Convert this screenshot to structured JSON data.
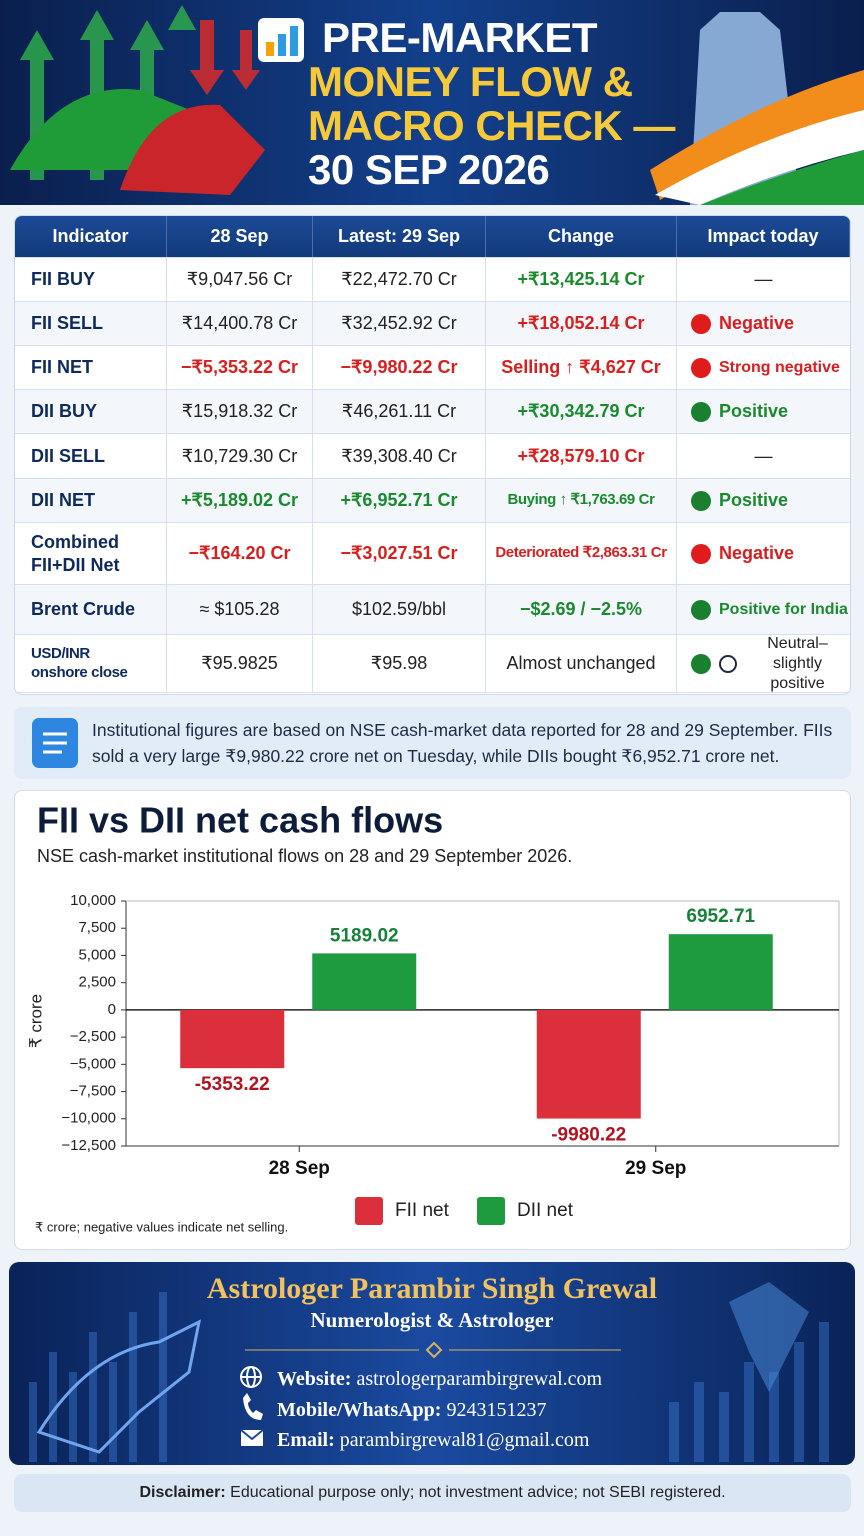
{
  "header": {
    "title_lines": [
      "PRE-MARKET",
      "MONEY FLOW &",
      "MACRO CHECK —",
      "30 SEP 2026"
    ]
  },
  "table": {
    "headers": [
      "Indicator",
      "28 Sep",
      "Latest: 29 Sep",
      "Change",
      "Impact today"
    ],
    "rows": [
      {
        "cells": [
          "FII BUY",
          "₹9,047.56 Cr",
          "₹22,472.70 Cr",
          "+₹13,425.14 Cr"
        ],
        "tones": [
          "dark",
          "plain",
          "plain",
          "green"
        ],
        "impact": {
          "text": "—",
          "dots": []
        }
      },
      {
        "cells": [
          "FII SELL",
          "₹14,400.78 Cr",
          "₹32,452.92 Cr",
          "+₹18,052.14 Cr"
        ],
        "tones": [
          "dark",
          "plain",
          "plain",
          "red"
        ],
        "impact": {
          "text": "Negative",
          "dots": [
            "#e01b1b"
          ],
          "tone": "red"
        }
      },
      {
        "cells": [
          "FII NET",
          "−₹5,353.22 Cr",
          "−₹9,980.22 Cr",
          "Selling ↑ ₹4,627 Cr"
        ],
        "tones": [
          "dark",
          "red",
          "red",
          "red"
        ],
        "impact": {
          "text": "Strong negative",
          "dots": [
            "#e01b1b"
          ],
          "tone": "red"
        }
      },
      {
        "cells": [
          "DII BUY",
          "₹15,918.32 Cr",
          "₹46,261.11 Cr",
          "+₹30,342.79 Cr"
        ],
        "tones": [
          "dark",
          "plain",
          "plain",
          "green"
        ],
        "impact": {
          "text": "Positive",
          "dots": [
            "#1a7f2e"
          ],
          "tone": "green"
        }
      },
      {
        "cells": [
          "DII SELL",
          "₹10,729.30 Cr",
          "₹39,308.40 Cr",
          "+₹28,579.10 Cr"
        ],
        "tones": [
          "dark",
          "plain",
          "plain",
          "red"
        ],
        "impact": {
          "text": "—",
          "dots": []
        }
      },
      {
        "cells": [
          "DII NET",
          "+₹5,189.02 Cr",
          "+₹6,952.71 Cr",
          "Buying ↑ ₹1,763.69 Cr"
        ],
        "tones": [
          "dark",
          "green",
          "green",
          "green"
        ],
        "impact": {
          "text": "Positive",
          "dots": [
            "#1a7f2e"
          ],
          "tone": "green"
        }
      },
      {
        "cells": [
          "Combined\nFII+DII Net",
          "−₹164.20 Cr",
          "−₹3,027.51 Cr",
          "Deteriorated ₹2,863.31 Cr"
        ],
        "tones": [
          "dark",
          "red",
          "red",
          "red"
        ],
        "impact": {
          "text": "Negative",
          "dots": [
            "#e01b1b"
          ],
          "tone": "red"
        }
      },
      {
        "cells": [
          "Brent Crude",
          "≈ $105.28",
          "$102.59/bbl",
          "−$2.69 / −2.5%"
        ],
        "tones": [
          "dark",
          "plain",
          "plain",
          "green"
        ],
        "impact": {
          "text": "Positive for India",
          "dots": [
            "#1a7f2e"
          ],
          "tone": "green"
        }
      },
      {
        "cells": [
          "USD/INR\nonshore close",
          "₹95.9825",
          "₹95.98",
          "Almost unchanged"
        ],
        "tones": [
          "dark",
          "plain",
          "plain",
          "plain"
        ],
        "impact": {
          "text": "Neutral–slightly\npositive",
          "dots": [
            "#1a7f2e",
            "outline"
          ],
          "tone": "plain"
        }
      }
    ]
  },
  "note": "Institutional figures are based on NSE cash-market data reported for 28 and 29 September. FIIs sold a very large ₹9,980.22 crore net on Tuesday, while DIIs bought ₹6,952.71 crore net.",
  "chart_data": {
    "type": "bar",
    "title": "FII vs DII net cash flows",
    "subtitle": "NSE cash-market institutional flows on 28 and 29 September 2026.",
    "y_label": "₹ crore",
    "footnote": "₹ crore; negative values indicate net selling.",
    "categories": [
      "28 Sep",
      "29 Sep"
    ],
    "series": [
      {
        "name": "FII net",
        "color": "#dc2f3c",
        "values": [
          -5353.22,
          -9980.22
        ]
      },
      {
        "name": "DII net",
        "color": "#1e9a3f",
        "values": [
          5189.02,
          6952.71
        ]
      }
    ],
    "ylim": [
      -12500,
      10000
    ],
    "yticks": [
      {
        "value": 10000,
        "label": "10,000"
      },
      {
        "value": 7500,
        "label": "7,500"
      },
      {
        "value": 5000,
        "label": "5,000"
      },
      {
        "value": 2500,
        "label": "2,500"
      },
      0,
      {
        "value": -2500,
        "label": "−2,500"
      },
      {
        "value": -5000,
        "label": "−5,000"
      },
      {
        "value": -7500,
        "label": "−7,500"
      },
      {
        "value": -10000,
        "label": "−10,000"
      },
      {
        "value": -12500,
        "label": "−12,500"
      }
    ],
    "grid": false
  },
  "footer": {
    "name": "Astrologer Parambir Singh Grewal",
    "role": "Numerologist & Astrologer",
    "contacts": [
      {
        "label": "Website:",
        "value": "astrologerparambirgrewal.com"
      },
      {
        "label": "Mobile/WhatsApp:",
        "value": "9243151237"
      },
      {
        "label": "Email:",
        "value": "parambirgrewal81@gmail.com"
      }
    ]
  },
  "disclaimer": {
    "label": "Disclaimer:",
    "text": "Educational purpose only; not investment advice; not SEBI registered."
  }
}
